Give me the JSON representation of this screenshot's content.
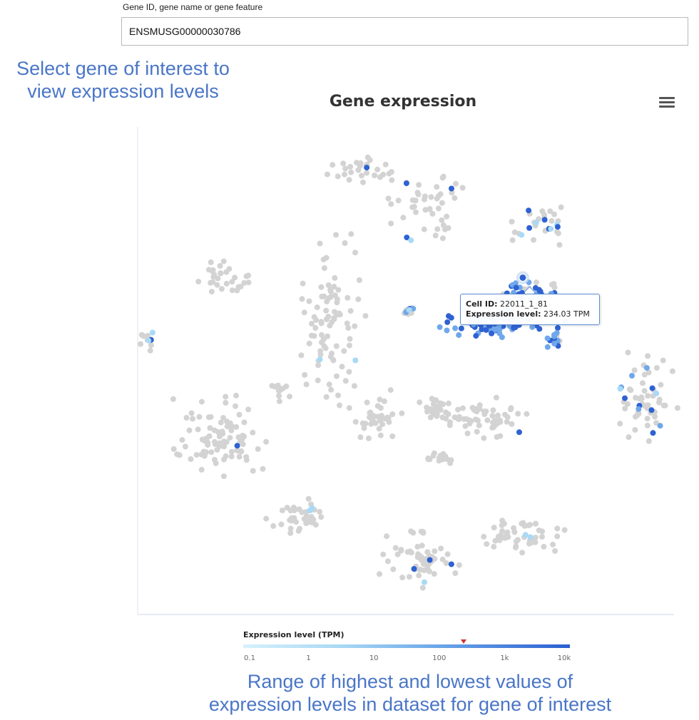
{
  "search": {
    "label": "Gene ID, gene name or gene feature",
    "value": "ENSMUSG00000030786"
  },
  "annotations": {
    "top_line1": "Select gene of interest to",
    "top_line2": "view expression levels",
    "bottom_line1": "Range of highest and lowest values of",
    "bottom_line2": "expression levels in dataset for gene of interest"
  },
  "chart": {
    "title": "Gene expression",
    "menu_icon": "hamburger-menu-icon"
  },
  "tooltip": {
    "cell_label": "Cell ID:",
    "cell_value": "22011_1_81",
    "expr_label": "Expression level:",
    "expr_value": "234.03 TPM"
  },
  "legend": {
    "title": "Expression level (TPM)",
    "ticks": [
      "0.1",
      "1",
      "10",
      "100",
      "1k",
      "10k"
    ],
    "marker_value": 234.03
  },
  "colors": {
    "unexpressed": "#d3d3d3",
    "low": "#a8daf6",
    "mid": "#6fa7ea",
    "high": "#2e62d2",
    "annotation": "#4a76c7"
  },
  "chart_data": {
    "type": "scatter",
    "title": "Gene expression",
    "xlabel": "",
    "ylabel": "",
    "xlim": [
      0,
      100
    ],
    "ylim": [
      0,
      100
    ],
    "grid": false,
    "color_scale": "log TPM, 0.1 to 10k",
    "highlighted_point": {
      "cell_id": "22011_1_81",
      "tpm": 234.03,
      "x": 71.8,
      "y": 69.2
    },
    "clusters": [
      {
        "cx": 42,
        "cy": 91,
        "rx": 7,
        "ry": 2.2,
        "n": 30,
        "expr": [
          0.12,
          0.3,
          0.7
        ]
      },
      {
        "cx": 54,
        "cy": 84,
        "rx": 5,
        "ry": 5.5,
        "n": 45,
        "expr": [
          0.1,
          0.3,
          0.5
        ]
      },
      {
        "cx": 74.5,
        "cy": 80,
        "rx": 5,
        "ry": 3.5,
        "n": 30,
        "expr": [
          0.3,
          0.5,
          0.6
        ]
      },
      {
        "cx": 17,
        "cy": 69,
        "rx": 4,
        "ry": 2.6,
        "n": 30,
        "expr": [
          0,
          0,
          0
        ]
      },
      {
        "cx": 35.5,
        "cy": 60,
        "rx": 5,
        "ry": 13,
        "n": 90,
        "expr": [
          0.05,
          0.1,
          0.6
        ]
      },
      {
        "cx": 50.5,
        "cy": 62,
        "rx": 1,
        "ry": 1.8,
        "n": 10,
        "expr": [
          0.8,
          0.6,
          0.9
        ]
      },
      {
        "cx": 66,
        "cy": 60,
        "rx": 7,
        "ry": 2.6,
        "n": 80,
        "expr": [
          0.95,
          0.8,
          1
        ]
      },
      {
        "cx": 73,
        "cy": 66,
        "rx": 5,
        "ry": 2.4,
        "n": 35,
        "expr": [
          0.8,
          0.6,
          1
        ]
      },
      {
        "cx": 78,
        "cy": 56,
        "rx": 2,
        "ry": 2.8,
        "n": 15,
        "expr": [
          0.9,
          0.8,
          1
        ]
      },
      {
        "cx": 2,
        "cy": 56,
        "rx": 1.4,
        "ry": 2,
        "n": 12,
        "expr": [
          0.2,
          0.2,
          0.3
        ]
      },
      {
        "cx": 27,
        "cy": 46,
        "rx": 2.2,
        "ry": 2.2,
        "n": 12,
        "expr": [
          0.05,
          0.2,
          0.5
        ]
      },
      {
        "cx": 95,
        "cy": 44,
        "rx": 4,
        "ry": 7,
        "n": 60,
        "expr": [
          0.2,
          0.3,
          0.7
        ]
      },
      {
        "cx": 15,
        "cy": 36,
        "rx": 7,
        "ry": 6,
        "n": 90,
        "expr": [
          0.02,
          0.5,
          0.9
        ]
      },
      {
        "cx": 45,
        "cy": 40,
        "rx": 4,
        "ry": 4.5,
        "n": 35,
        "expr": [
          0,
          0,
          0
        ]
      },
      {
        "cx": 55,
        "cy": 42,
        "rx": 3,
        "ry": 2.5,
        "n": 25,
        "expr": [
          0,
          0,
          0
        ]
      },
      {
        "cx": 64,
        "cy": 40,
        "rx": 7,
        "ry": 3,
        "n": 60,
        "expr": [
          0.02,
          0.4,
          0.6
        ]
      },
      {
        "cx": 57,
        "cy": 32,
        "rx": 3,
        "ry": 1,
        "n": 15,
        "expr": [
          0,
          0,
          0
        ]
      },
      {
        "cx": 30,
        "cy": 20,
        "rx": 4,
        "ry": 3,
        "n": 40,
        "expr": [
          0.05,
          0.3,
          0.5
        ]
      },
      {
        "cx": 52,
        "cy": 11,
        "rx": 6,
        "ry": 4.5,
        "n": 60,
        "expr": [
          0.08,
          0.3,
          0.6
        ]
      },
      {
        "cx": 72,
        "cy": 16,
        "rx": 6,
        "ry": 3,
        "n": 50,
        "expr": [
          0.05,
          0.3,
          0.6
        ]
      }
    ]
  }
}
